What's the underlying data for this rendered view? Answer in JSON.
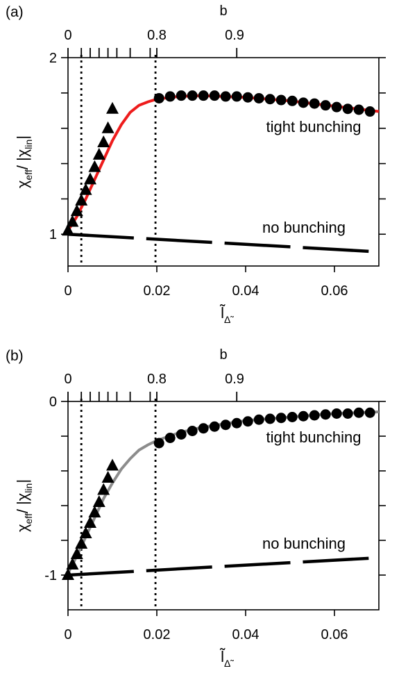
{
  "chart_data": [
    {
      "type": "scatter",
      "panel_label": "(a)",
      "xlabel": "l̃",
      "xlabel_sub": "Δ̃",
      "ylabel": "χ",
      "ylabel_sub1": "eff",
      "ylabel_mid": "/ |χ",
      "ylabel_sub2": "lin",
      "ylabel_end": "|",
      "top_axis_label": "b",
      "xlim": [
        0,
        0.07
      ],
      "ylim": [
        0.82,
        2.0
      ],
      "x_ticks": [
        0,
        0.02,
        0.04,
        0.06
      ],
      "x_tick_labels": [
        "0",
        "0.02",
        "0.04",
        "0.06"
      ],
      "y_ticks": [
        1,
        2
      ],
      "y_tick_labels": [
        "1",
        "2"
      ],
      "y_minor_ticks": [
        1.2,
        1.4,
        1.6,
        1.8
      ],
      "top_ticks": [
        0,
        0.003,
        0.005,
        0.007,
        0.009,
        0.011,
        0.014,
        0.0185,
        0.02,
        0.038
      ],
      "top_tick_labels": [
        {
          "x": 0,
          "label": "0"
        },
        {
          "x": 0.02,
          "label": "0.8"
        },
        {
          "x": 0.0375,
          "label": "0.9"
        }
      ],
      "vlines_dotted": [
        0.003,
        0.0197
      ],
      "annotations": [
        "tight bunching",
        "no bunching"
      ],
      "series": [
        {
          "marker": "triangle",
          "x": [
            0.0,
            0.001,
            0.002,
            0.003,
            0.004,
            0.005,
            0.006,
            0.007,
            0.008,
            0.009,
            0.01
          ],
          "y": [
            1.02,
            1.07,
            1.13,
            1.19,
            1.25,
            1.31,
            1.38,
            1.45,
            1.52,
            1.6,
            1.71
          ]
        },
        {
          "marker": "circle",
          "x": [
            0.0205,
            0.023,
            0.0255,
            0.028,
            0.0305,
            0.033,
            0.0355,
            0.038,
            0.0405,
            0.043,
            0.0455,
            0.048,
            0.0505,
            0.053,
            0.0555,
            0.058,
            0.0605,
            0.063,
            0.0655,
            0.068
          ],
          "y": [
            1.77,
            1.78,
            1.785,
            1.785,
            1.785,
            1.785,
            1.78,
            1.78,
            1.775,
            1.77,
            1.765,
            1.76,
            1.755,
            1.745,
            1.74,
            1.73,
            1.72,
            1.71,
            1.705,
            1.695
          ]
        },
        {
          "style": "solid-curve",
          "color": "#ee1c1c",
          "x": [
            0,
            0.002,
            0.004,
            0.006,
            0.008,
            0.01,
            0.012,
            0.014,
            0.016,
            0.018,
            0.02,
            0.025,
            0.03,
            0.035,
            0.04,
            0.045,
            0.05,
            0.055,
            0.06,
            0.065,
            0.07
          ],
          "y": [
            1.02,
            1.1,
            1.2,
            1.31,
            1.42,
            1.53,
            1.62,
            1.69,
            1.73,
            1.75,
            1.765,
            1.78,
            1.785,
            1.78,
            1.775,
            1.765,
            1.755,
            1.74,
            1.725,
            1.71,
            1.695
          ]
        },
        {
          "style": "long-dash",
          "x": [
            0,
            0.07
          ],
          "y": [
            1.0,
            0.9
          ]
        }
      ]
    },
    {
      "type": "scatter",
      "panel_label": "(b)",
      "xlabel": "l̃",
      "xlabel_sub": "Δ̃",
      "ylabel": "χ",
      "ylabel_sub1": "eff",
      "ylabel_mid": "/ |χ",
      "ylabel_sub2": "lin",
      "ylabel_end": "|",
      "top_axis_label": "b",
      "xlim": [
        0,
        0.07
      ],
      "ylim": [
        -1.2,
        0.0
      ],
      "x_ticks": [
        0,
        0.02,
        0.04,
        0.06
      ],
      "x_tick_labels": [
        "0",
        "0.02",
        "0.04",
        "0.06"
      ],
      "y_ticks": [
        -1,
        0
      ],
      "y_tick_labels": [
        "-1",
        "0"
      ],
      "y_minor_ticks": [
        -0.8,
        -0.6,
        -0.4,
        -0.2
      ],
      "top_ticks": [
        0,
        0.003,
        0.005,
        0.007,
        0.009,
        0.011,
        0.014,
        0.0185,
        0.02,
        0.038
      ],
      "top_tick_labels": [
        {
          "x": 0,
          "label": "0"
        },
        {
          "x": 0.02,
          "label": "0.8"
        },
        {
          "x": 0.0375,
          "label": "0.9"
        }
      ],
      "vlines_dotted": [
        0.003,
        0.0197
      ],
      "annotations": [
        "tight bunching",
        "no bunching"
      ],
      "series": [
        {
          "marker": "triangle",
          "x": [
            0.0,
            0.001,
            0.002,
            0.003,
            0.004,
            0.005,
            0.006,
            0.007,
            0.008,
            0.009,
            0.01
          ],
          "y": [
            -1.0,
            -0.94,
            -0.88,
            -0.82,
            -0.76,
            -0.7,
            -0.64,
            -0.58,
            -0.51,
            -0.44,
            -0.37
          ]
        },
        {
          "marker": "circle",
          "x": [
            0.0205,
            0.023,
            0.0255,
            0.028,
            0.0305,
            0.033,
            0.0355,
            0.038,
            0.0405,
            0.043,
            0.0455,
            0.048,
            0.0505,
            0.053,
            0.0555,
            0.058,
            0.0605,
            0.063,
            0.0655,
            0.068
          ],
          "y": [
            -0.24,
            -0.21,
            -0.19,
            -0.17,
            -0.155,
            -0.145,
            -0.135,
            -0.125,
            -0.115,
            -0.105,
            -0.1,
            -0.095,
            -0.09,
            -0.085,
            -0.08,
            -0.075,
            -0.07,
            -0.07,
            -0.065,
            -0.065
          ]
        },
        {
          "style": "solid-curve",
          "color": "#8c8c8c",
          "x": [
            0,
            0.002,
            0.004,
            0.006,
            0.008,
            0.01,
            0.012,
            0.014,
            0.016,
            0.018,
            0.02,
            0.025,
            0.03,
            0.035,
            0.04,
            0.045,
            0.05,
            0.055,
            0.06,
            0.065,
            0.07
          ],
          "y": [
            -0.99,
            -0.89,
            -0.78,
            -0.67,
            -0.56,
            -0.47,
            -0.39,
            -0.33,
            -0.28,
            -0.25,
            -0.225,
            -0.18,
            -0.15,
            -0.13,
            -0.11,
            -0.1,
            -0.09,
            -0.08,
            -0.07,
            -0.065,
            -0.06
          ]
        },
        {
          "style": "long-dash",
          "x": [
            0,
            0.07
          ],
          "y": [
            -1.0,
            -0.9
          ]
        }
      ]
    }
  ]
}
